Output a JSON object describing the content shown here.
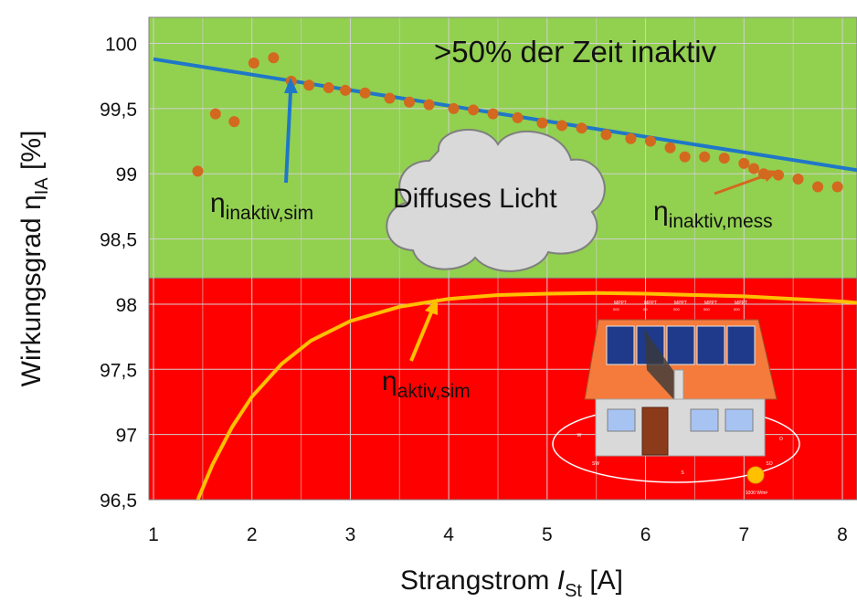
{
  "chart_data": {
    "type": "line",
    "xlabel": {
      "main": "Strangstrom ",
      "italic": "I",
      "sub": "St",
      "unit": " [A]"
    },
    "ylabel": {
      "main": "Wirkungsgrad η",
      "sub": "IA",
      "unit": " [%]"
    },
    "xlim": [
      1,
      8.3
    ],
    "ylim": [
      96.5,
      100.2
    ],
    "xticks": [
      "1",
      "2",
      "3",
      "4",
      "5",
      "6",
      "7",
      "8"
    ],
    "xtick_values": [
      1,
      2,
      3,
      4,
      5,
      6,
      7,
      8
    ],
    "yticks": [
      "96,5",
      "97",
      "97,5",
      "98",
      "98,5",
      "99",
      "99,5",
      "100"
    ],
    "ytick_values": [
      96.5,
      97,
      97.5,
      98,
      98.5,
      99,
      99.5,
      100
    ],
    "grid": true,
    "regions": [
      {
        "name": "inaktiv",
        "from": 98.2,
        "to": 100.2,
        "color": "#92d050"
      },
      {
        "name": "aktiv",
        "from": 96.5,
        "to": 98.2,
        "color": "#ff0000"
      }
    ],
    "series": [
      {
        "name": "ηinaktiv,sim",
        "kind": "line",
        "color": "#1f77c8",
        "x": [
          1,
          8.3
        ],
        "y": [
          99.88,
          99.01
        ]
      },
      {
        "name": "ηaktiv,sim",
        "kind": "line",
        "color": "#ffc000",
        "x": [
          1.45,
          1.6,
          1.8,
          2.0,
          2.3,
          2.6,
          3.0,
          3.5,
          4.0,
          4.5,
          5.0,
          5.5,
          6.0,
          6.5,
          7.0,
          7.5,
          8.0,
          8.3
        ],
        "y": [
          96.5,
          96.77,
          97.06,
          97.29,
          97.54,
          97.72,
          97.87,
          97.98,
          98.04,
          98.07,
          98.08,
          98.085,
          98.08,
          98.07,
          98.06,
          98.04,
          98.02,
          98.0
        ]
      },
      {
        "name": "ηinaktiv,mess",
        "kind": "scatter",
        "color": "#d2691e",
        "x": [
          1.45,
          1.63,
          1.82,
          2.02,
          2.22,
          2.4,
          2.58,
          2.78,
          2.95,
          3.15,
          3.4,
          3.6,
          3.8,
          4.05,
          4.25,
          4.45,
          4.7,
          4.95,
          5.15,
          5.35,
          5.6,
          5.85,
          6.05,
          6.25,
          6.4,
          6.6,
          6.8,
          7.0,
          7.1,
          7.2,
          7.35,
          7.55,
          7.75,
          7.95,
          8.25
        ],
        "y": [
          99.02,
          99.46,
          99.4,
          99.85,
          99.89,
          99.71,
          99.68,
          99.66,
          99.64,
          99.62,
          99.58,
          99.55,
          99.53,
          99.5,
          99.49,
          99.46,
          99.43,
          99.39,
          99.37,
          99.35,
          99.3,
          99.27,
          99.25,
          99.2,
          99.13,
          99.13,
          99.12,
          99.08,
          99.04,
          99.0,
          98.99,
          98.96,
          98.9,
          98.9,
          98.8
        ]
      }
    ],
    "annotations": [
      {
        "id": "inaktiv-sim",
        "text": "η",
        "sub": "inaktiv,sim",
        "arrow_color": "#1f77c8"
      },
      {
        "id": "inaktiv-mess",
        "text": "η",
        "sub": "inaktiv,mess",
        "arrow_color": "#d2691e"
      },
      {
        "id": "aktiv-sim",
        "text": "η",
        "sub": "aktiv,sim",
        "arrow_color": "#ffc000"
      },
      {
        "id": "header",
        "text": ">50% der Zeit inaktiv"
      },
      {
        "id": "cloud",
        "text": "Diffuses Licht"
      }
    ],
    "illustration": {
      "description_icon": "house-with-solar-panels-icon",
      "panel_labels": [
        "MPPT",
        "MPPT",
        "MPPT",
        "MPPT",
        "MPPT"
      ],
      "panel_sub": [
        "000",
        "00",
        "000",
        "000",
        "000"
      ],
      "sun_label": "1000 W/m²",
      "compass": [
        "W",
        "O",
        "SW",
        "SO",
        "S"
      ]
    }
  }
}
